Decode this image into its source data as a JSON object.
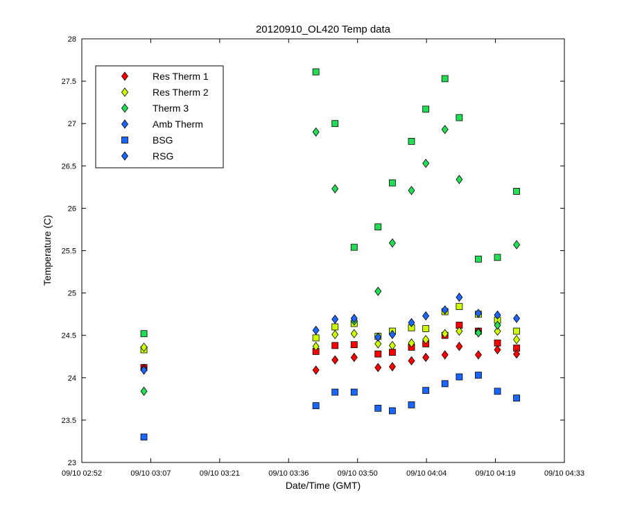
{
  "chart_data": {
    "type": "scatter",
    "title": "20120910_OL420 Temp data",
    "xlabel": "Date/Time (GMT)",
    "ylabel": "Temperature (C)",
    "xlim": [
      "09/10 02:52",
      "09/10 04:33"
    ],
    "ylim": [
      23,
      28
    ],
    "x_ticks": [
      "09/10 02:52",
      "09/10 03:07",
      "09/10 03:21",
      "09/10 03:36",
      "09/10 03:50",
      "09/10 04:04",
      "09/10 04:19",
      "09/10 04:33"
    ],
    "y_ticks": [
      "23",
      "23.5",
      "24",
      "24.5",
      "25",
      "25.5",
      "26",
      "26.5",
      "27",
      "27.5",
      "28"
    ],
    "grid": false,
    "legend_position": "top-left",
    "series": [
      {
        "name": "Res Therm 1",
        "marker": "diamond",
        "color": "#ff0000",
        "values": [
          {
            "x": "09/10 03:05",
            "y": 24.11
          },
          {
            "x": "09/10 03:41",
            "y": 24.09
          },
          {
            "x": "09/10 03:45",
            "y": 24.21
          },
          {
            "x": "09/10 03:49",
            "y": 24.24
          },
          {
            "x": "09/10 03:54",
            "y": 24.12
          },
          {
            "x": "09/10 03:57",
            "y": 24.13
          },
          {
            "x": "09/10 04:01",
            "y": 24.2
          },
          {
            "x": "09/10 04:04",
            "y": 24.24
          },
          {
            "x": "09/10 04:08",
            "y": 24.27
          },
          {
            "x": "09/10 04:11",
            "y": 24.37
          },
          {
            "x": "09/10 04:15",
            "y": 24.27
          },
          {
            "x": "09/10 04:19",
            "y": 24.33
          },
          {
            "x": "09/10 04:23",
            "y": 24.28
          }
        ]
      },
      {
        "name": "Res Therm 2",
        "marker": "diamond",
        "color": "#ccff00",
        "values": [
          {
            "x": "09/10 03:05",
            "y": 24.36
          },
          {
            "x": "09/10 03:41",
            "y": 24.37
          },
          {
            "x": "09/10 03:45",
            "y": 24.51
          },
          {
            "x": "09/10 03:49",
            "y": 24.52
          },
          {
            "x": "09/10 03:54",
            "y": 24.4
          },
          {
            "x": "09/10 03:57",
            "y": 24.38
          },
          {
            "x": "09/10 04:01",
            "y": 24.41
          },
          {
            "x": "09/10 04:04",
            "y": 24.45
          },
          {
            "x": "09/10 04:08",
            "y": 24.52
          },
          {
            "x": "09/10 04:11",
            "y": 24.55
          },
          {
            "x": "09/10 04:15",
            "y": 24.54
          },
          {
            "x": "09/10 04:19",
            "y": 24.55
          },
          {
            "x": "09/10 04:23",
            "y": 24.45
          }
        ]
      },
      {
        "name": "Therm 3",
        "marker": "diamond",
        "color": "#22dd55",
        "values": [
          {
            "x": "09/10 03:05",
            "y": 23.84
          },
          {
            "x": "09/10 03:41",
            "y": 26.9
          },
          {
            "x": "09/10 03:45",
            "y": 26.23
          },
          {
            "x": "09/10 03:49",
            "y": 24.67
          },
          {
            "x": "09/10 03:54",
            "y": 25.02
          },
          {
            "x": "09/10 03:57",
            "y": 25.59
          },
          {
            "x": "09/10 04:01",
            "y": 26.21
          },
          {
            "x": "09/10 04:04",
            "y": 26.53
          },
          {
            "x": "09/10 04:08",
            "y": 26.93
          },
          {
            "x": "09/10 04:11",
            "y": 26.34
          },
          {
            "x": "09/10 04:15",
            "y": 24.53
          },
          {
            "x": "09/10 04:19",
            "y": 24.62
          },
          {
            "x": "09/10 04:23",
            "y": 25.57
          }
        ]
      },
      {
        "name": "Amb Therm",
        "marker": "diamond",
        "color": "#1a66ff",
        "values": [
          {
            "x": "09/10 03:05",
            "y": 24.09
          },
          {
            "x": "09/10 03:41",
            "y": 24.56
          },
          {
            "x": "09/10 03:45",
            "y": 24.69
          },
          {
            "x": "09/10 03:49",
            "y": 24.7
          },
          {
            "x": "09/10 03:54",
            "y": 24.48
          },
          {
            "x": "09/10 03:57",
            "y": 24.51
          },
          {
            "x": "09/10 04:01",
            "y": 24.65
          },
          {
            "x": "09/10 04:04",
            "y": 24.73
          },
          {
            "x": "09/10 04:08",
            "y": 24.8
          },
          {
            "x": "09/10 04:11",
            "y": 24.95
          },
          {
            "x": "09/10 04:15",
            "y": 24.76
          },
          {
            "x": "09/10 04:19",
            "y": 24.74
          },
          {
            "x": "09/10 04:23",
            "y": 24.7
          }
        ]
      },
      {
        "name": "BSG",
        "marker": "square",
        "color": "#1a66ff",
        "values": [
          {
            "x": "09/10 03:05",
            "y": 23.3
          },
          {
            "x": "09/10 03:41",
            "y": 23.67
          },
          {
            "x": "09/10 03:45",
            "y": 23.83
          },
          {
            "x": "09/10 03:49",
            "y": 23.83
          },
          {
            "x": "09/10 03:54",
            "y": 23.64
          },
          {
            "x": "09/10 03:57",
            "y": 23.61
          },
          {
            "x": "09/10 04:01",
            "y": 23.68
          },
          {
            "x": "09/10 04:04",
            "y": 23.85
          },
          {
            "x": "09/10 04:08",
            "y": 23.93
          },
          {
            "x": "09/10 04:11",
            "y": 24.01
          },
          {
            "x": "09/10 04:15",
            "y": 24.03
          },
          {
            "x": "09/10 04:19",
            "y": 23.84
          },
          {
            "x": "09/10 04:23",
            "y": 23.76
          }
        ]
      },
      {
        "name": "RSG",
        "marker": "diamond",
        "color": "#1a66ff",
        "values": []
      },
      {
        "name": "",
        "marker": "square",
        "color": "#ff0000",
        "values": [
          {
            "x": "09/10 03:05",
            "y": 24.12
          },
          {
            "x": "09/10 03:41",
            "y": 24.31
          },
          {
            "x": "09/10 03:45",
            "y": 24.38
          },
          {
            "x": "09/10 03:49",
            "y": 24.39
          },
          {
            "x": "09/10 03:54",
            "y": 24.28
          },
          {
            "x": "09/10 03:57",
            "y": 24.3
          },
          {
            "x": "09/10 04:01",
            "y": 24.36
          },
          {
            "x": "09/10 04:04",
            "y": 24.4
          },
          {
            "x": "09/10 04:08",
            "y": 24.5
          },
          {
            "x": "09/10 04:11",
            "y": 24.62
          },
          {
            "x": "09/10 04:15",
            "y": 24.55
          },
          {
            "x": "09/10 04:19",
            "y": 24.41
          },
          {
            "x": "09/10 04:23",
            "y": 24.35
          }
        ]
      },
      {
        "name": "",
        "marker": "square",
        "color": "#ccff00",
        "values": [
          {
            "x": "09/10 03:05",
            "y": 24.33
          },
          {
            "x": "09/10 03:41",
            "y": 24.47
          },
          {
            "x": "09/10 03:45",
            "y": 24.6
          },
          {
            "x": "09/10 03:49",
            "y": 24.64
          },
          {
            "x": "09/10 03:54",
            "y": 24.49
          },
          {
            "x": "09/10 03:57",
            "y": 24.55
          },
          {
            "x": "09/10 04:01",
            "y": 24.59
          },
          {
            "x": "09/10 04:04",
            "y": 24.58
          },
          {
            "x": "09/10 04:08",
            "y": 24.78
          },
          {
            "x": "09/10 04:11",
            "y": 24.84
          },
          {
            "x": "09/10 04:15",
            "y": 24.75
          },
          {
            "x": "09/10 04:19",
            "y": 24.68
          },
          {
            "x": "09/10 04:23",
            "y": 24.55
          }
        ]
      },
      {
        "name": "",
        "marker": "square",
        "color": "#22dd55",
        "values": [
          {
            "x": "09/10 03:05",
            "y": 24.52
          },
          {
            "x": "09/10 03:41",
            "y": 27.61
          },
          {
            "x": "09/10 03:45",
            "y": 27.0
          },
          {
            "x": "09/10 03:49",
            "y": 25.54
          },
          {
            "x": "09/10 03:54",
            "y": 25.78
          },
          {
            "x": "09/10 03:57",
            "y": 26.3
          },
          {
            "x": "09/10 04:01",
            "y": 26.79
          },
          {
            "x": "09/10 04:04",
            "y": 27.17
          },
          {
            "x": "09/10 04:08",
            "y": 27.53
          },
          {
            "x": "09/10 04:11",
            "y": 27.07
          },
          {
            "x": "09/10 04:15",
            "y": 25.4
          },
          {
            "x": "09/10 04:19",
            "y": 25.42
          },
          {
            "x": "09/10 04:23",
            "y": 26.2
          }
        ]
      }
    ]
  }
}
